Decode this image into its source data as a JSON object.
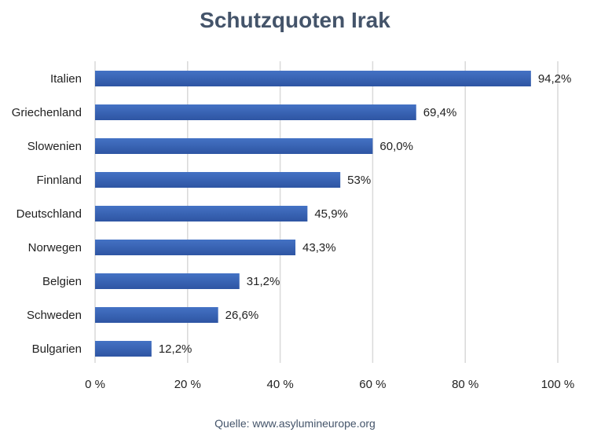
{
  "chart_data": {
    "type": "bar",
    "orientation": "horizontal",
    "title": "Schutzquoten Irak",
    "categories": [
      "Italien",
      "Griechenland",
      "Slowenien",
      "Finnland",
      "Deutschland",
      "Norwegen",
      "Belgien",
      "Schweden",
      "Bulgarien"
    ],
    "values": [
      94.2,
      69.4,
      60.0,
      53,
      45.9,
      43.3,
      31.2,
      26.6,
      12.2
    ],
    "value_labels": [
      "94,2%",
      "69,4%",
      "60,0%",
      "53%",
      "45,9%",
      "43,3%",
      "31,2%",
      "26,6%",
      "12,2%"
    ],
    "xlim": [
      0,
      100
    ],
    "x_ticks": [
      0,
      20,
      40,
      60,
      80,
      100
    ],
    "x_tick_labels": [
      "0 %",
      "20 %",
      "40 %",
      "60 %",
      "80 %",
      "100 %"
    ],
    "grid": "vertical",
    "legend": "none",
    "bar_color": "#4472c4",
    "bar_color_dark": "#2e55a3"
  },
  "source": "Quelle: www.asylumineurope.org"
}
